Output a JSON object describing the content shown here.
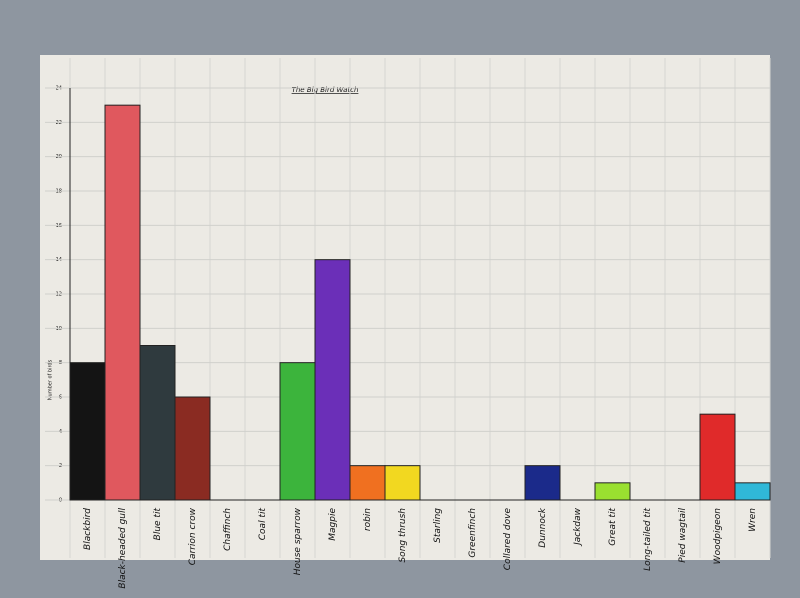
{
  "chart_data": {
    "type": "bar",
    "title": "The Big Bird Watch",
    "y_label": "Number of birds",
    "categories": [
      "Blackbird",
      "Black-headed gull",
      "Blue tit",
      "Carrion crow",
      "Chaffinch",
      "Coal tit",
      "House sparrow",
      "Magpie",
      "robin",
      "Song thrush",
      "Starling",
      "Greenfinch",
      "Collared dove",
      "Dunnock",
      "Jackdaw",
      "Great tit",
      "Long-tailed tit",
      "Pied wagtail",
      "Woodpigeon",
      "Wren"
    ],
    "values": [
      8,
      23,
      9,
      6,
      0,
      0,
      8,
      14,
      2,
      2,
      0,
      0,
      0,
      2,
      0,
      1,
      0,
      0,
      5,
      1
    ],
    "colors": [
      "#141414",
      "#e0585e",
      "#2f3a3e",
      "#8a2b22",
      null,
      null,
      "#3cb43c",
      "#6b2fb8",
      "#f07020",
      "#f2d820",
      null,
      null,
      null,
      "#1b2a8a",
      null,
      "#9ae030",
      null,
      null,
      "#e02a2a",
      "#30b8d8"
    ],
    "ylim": [
      0,
      24
    ],
    "yticks": [
      0,
      2,
      4,
      6,
      8,
      10,
      12,
      14,
      16,
      18,
      20,
      22,
      24
    ],
    "grid": true
  }
}
